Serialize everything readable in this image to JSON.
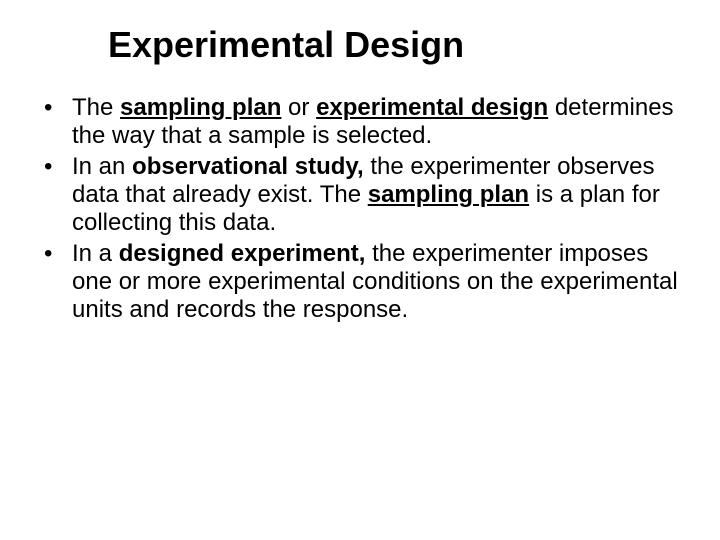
{
  "title": "Experimental Design",
  "title_fontsize": 36,
  "body_fontsize": 24,
  "background_color": "#ffffff",
  "text_color": "#000000",
  "bullets": [
    {
      "runs": [
        {
          "text": "The ",
          "style": "plain"
        },
        {
          "text": "sampling plan",
          "style": "bold-underline"
        },
        {
          "text": " or ",
          "style": "plain"
        },
        {
          "text": "experimental design",
          "style": "bold-underline"
        },
        {
          "text": " determines the way that a sample is selected.",
          "style": "plain"
        }
      ]
    },
    {
      "runs": [
        {
          "text": "In an ",
          "style": "plain"
        },
        {
          "text": "observational study,",
          "style": "bold"
        },
        {
          "text": " the experimenter observes data that already exist. The ",
          "style": "plain"
        },
        {
          "text": "sampling plan",
          "style": "bold-underline"
        },
        {
          "text": " is a plan for collecting this data.",
          "style": "plain"
        }
      ]
    },
    {
      "runs": [
        {
          "text": "In a ",
          "style": "plain"
        },
        {
          "text": "designed experiment,",
          "style": "bold"
        },
        {
          "text": " the experimenter imposes one or more experimental conditions on the experimental units and records the response.",
          "style": "plain"
        }
      ]
    }
  ]
}
